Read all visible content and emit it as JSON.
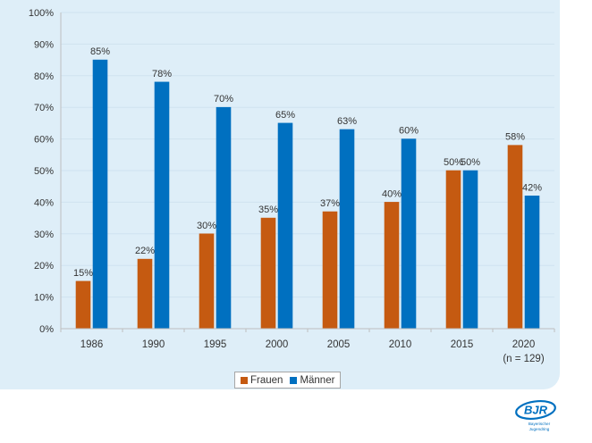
{
  "chart_data": {
    "type": "bar",
    "categories": [
      "1986",
      "1990",
      "1995",
      "2000",
      "2005",
      "2010",
      "2015",
      "2020"
    ],
    "category_note": "(n = 129)",
    "series": [
      {
        "name": "Frauen",
        "values": [
          15,
          22,
          30,
          35,
          37,
          40,
          50,
          58
        ],
        "color": "#c55a11"
      },
      {
        "name": "Männer",
        "values": [
          85,
          78,
          70,
          65,
          63,
          60,
          50,
          42
        ],
        "color": "#0070c0"
      }
    ],
    "value_suffix": "%",
    "ylim": [
      0,
      100
    ],
    "yticks": [
      0,
      10,
      20,
      30,
      40,
      50,
      60,
      70,
      80,
      90,
      100
    ],
    "grid": true,
    "legend_position": "bottom",
    "title": "",
    "xlabel": "",
    "ylabel": ""
  },
  "logo": {
    "text": "BJR",
    "subtitle_line1": "Bayerischer",
    "subtitle_line2": "Jugendring",
    "color": "#0070c0"
  }
}
